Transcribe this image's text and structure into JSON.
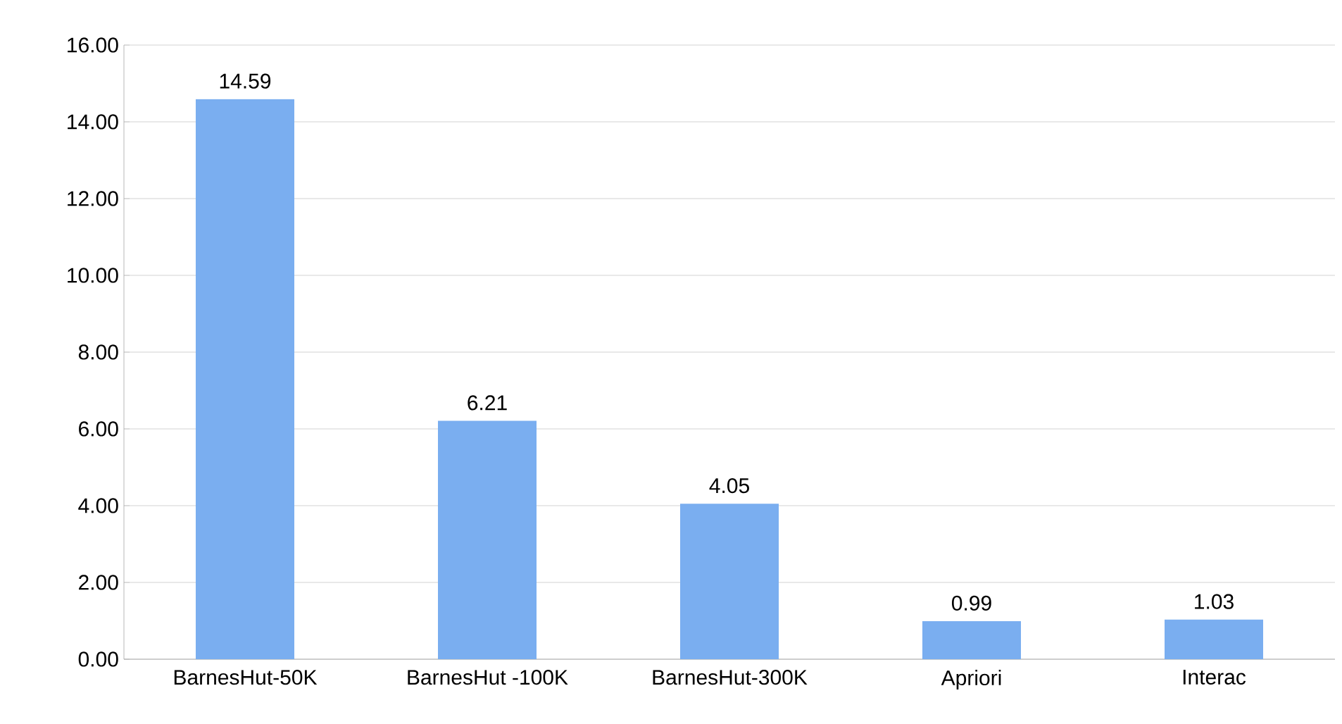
{
  "chart_data": {
    "type": "bar",
    "categories": [
      "BarnesHut-50K",
      "BarnesHut -100K",
      "BarnesHut-300K",
      "Apriori",
      "Interac"
    ],
    "values": [
      14.59,
      6.21,
      4.05,
      0.99,
      1.03
    ],
    "color": "#7aaef0",
    "ylim": [
      0,
      16
    ],
    "yticks": [
      {
        "value": 0,
        "label": "0.00"
      },
      {
        "value": 2,
        "label": "2.00"
      },
      {
        "value": 4,
        "label": "4.00"
      },
      {
        "value": 6,
        "label": "6.00"
      },
      {
        "value": 8,
        "label": "8.00"
      },
      {
        "value": 10,
        "label": "10.00"
      },
      {
        "value": 12,
        "label": "12.00"
      },
      {
        "value": 14,
        "label": "14.00"
      },
      {
        "value": 16,
        "label": "16.00"
      }
    ],
    "grid": "y",
    "data_labels": true
  }
}
